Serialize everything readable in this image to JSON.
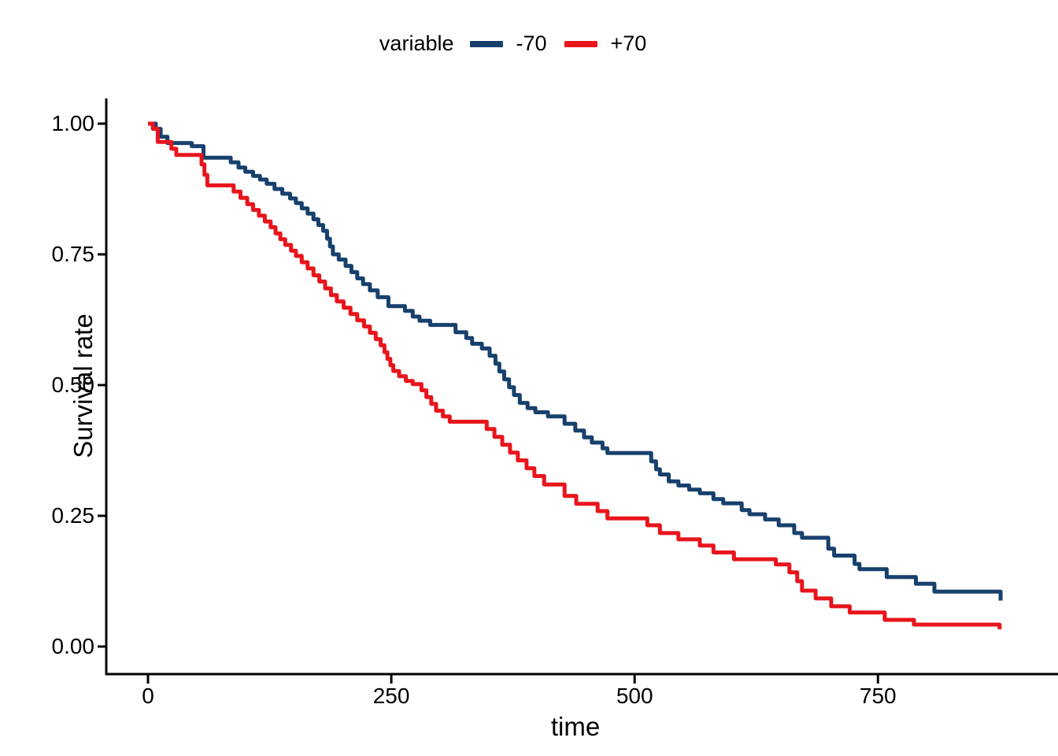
{
  "chart_data": {
    "type": "line",
    "step": true,
    "title": "",
    "xlabel": "time",
    "ylabel": "Survival rate",
    "legend_title": "variable",
    "legend_position": "top",
    "grid": false,
    "xlim": [
      0,
      935
    ],
    "ylim": [
      0,
      1
    ],
    "xticks": [
      {
        "value": 0,
        "label": "0"
      },
      {
        "value": 250,
        "label": "250"
      },
      {
        "value": 500,
        "label": "500"
      },
      {
        "value": 750,
        "label": "750"
      }
    ],
    "yticks": [
      {
        "value": 0.0,
        "label": "0.00"
      },
      {
        "value": 0.25,
        "label": "0.25"
      },
      {
        "value": 0.5,
        "label": "0.50"
      },
      {
        "value": 0.75,
        "label": "0.75"
      },
      {
        "value": 1.0,
        "label": "1.00"
      }
    ],
    "axis_color": "#000000",
    "series": [
      {
        "name": "-70",
        "color": "#17406D",
        "points": [
          [
            0,
            1.0
          ],
          [
            8,
            0.99
          ],
          [
            13,
            0.975
          ],
          [
            20,
            0.963
          ],
          [
            45,
            0.957
          ],
          [
            57,
            0.935
          ],
          [
            85,
            0.926
          ],
          [
            93,
            0.916
          ],
          [
            100,
            0.908
          ],
          [
            108,
            0.9
          ],
          [
            115,
            0.893
          ],
          [
            122,
            0.885
          ],
          [
            130,
            0.875
          ],
          [
            138,
            0.866
          ],
          [
            146,
            0.857
          ],
          [
            152,
            0.848
          ],
          [
            158,
            0.838
          ],
          [
            164,
            0.828
          ],
          [
            170,
            0.817
          ],
          [
            175,
            0.806
          ],
          [
            180,
            0.795
          ],
          [
            184,
            0.78
          ],
          [
            187,
            0.765
          ],
          [
            190,
            0.75
          ],
          [
            196,
            0.74
          ],
          [
            203,
            0.728
          ],
          [
            209,
            0.716
          ],
          [
            215,
            0.704
          ],
          [
            221,
            0.693
          ],
          [
            228,
            0.681
          ],
          [
            236,
            0.668
          ],
          [
            247,
            0.651
          ],
          [
            264,
            0.642
          ],
          [
            272,
            0.631
          ],
          [
            279,
            0.623
          ],
          [
            290,
            0.615
          ],
          [
            316,
            0.601
          ],
          [
            327,
            0.59
          ],
          [
            333,
            0.579
          ],
          [
            343,
            0.57
          ],
          [
            351,
            0.556
          ],
          [
            357,
            0.541
          ],
          [
            361,
            0.526
          ],
          [
            366,
            0.511
          ],
          [
            371,
            0.496
          ],
          [
            376,
            0.481
          ],
          [
            382,
            0.466
          ],
          [
            390,
            0.456
          ],
          [
            398,
            0.448
          ],
          [
            411,
            0.44
          ],
          [
            428,
            0.426
          ],
          [
            439,
            0.413
          ],
          [
            448,
            0.4
          ],
          [
            456,
            0.39
          ],
          [
            467,
            0.379
          ],
          [
            472,
            0.37
          ],
          [
            517,
            0.354
          ],
          [
            522,
            0.339
          ],
          [
            526,
            0.329
          ],
          [
            535,
            0.316
          ],
          [
            545,
            0.308
          ],
          [
            556,
            0.3
          ],
          [
            567,
            0.293
          ],
          [
            581,
            0.282
          ],
          [
            591,
            0.274
          ],
          [
            610,
            0.261
          ],
          [
            618,
            0.253
          ],
          [
            634,
            0.243
          ],
          [
            648,
            0.232
          ],
          [
            664,
            0.217
          ],
          [
            672,
            0.208
          ],
          [
            699,
            0.187
          ],
          [
            705,
            0.174
          ],
          [
            726,
            0.158
          ],
          [
            731,
            0.148
          ],
          [
            759,
            0.133
          ],
          [
            789,
            0.12
          ],
          [
            808,
            0.105
          ],
          [
            876,
            0.088
          ]
        ]
      },
      {
        "name": "+70",
        "color": "#E8151C",
        "points": [
          [
            0,
            1.0
          ],
          [
            5,
            0.99
          ],
          [
            10,
            0.965
          ],
          [
            24,
            0.952
          ],
          [
            29,
            0.94
          ],
          [
            55,
            0.922
          ],
          [
            58,
            0.902
          ],
          [
            61,
            0.882
          ],
          [
            88,
            0.87
          ],
          [
            95,
            0.858
          ],
          [
            102,
            0.846
          ],
          [
            108,
            0.835
          ],
          [
            114,
            0.824
          ],
          [
            120,
            0.813
          ],
          [
            126,
            0.802
          ],
          [
            131,
            0.79
          ],
          [
            136,
            0.779
          ],
          [
            141,
            0.768
          ],
          [
            147,
            0.757
          ],
          [
            152,
            0.747
          ],
          [
            158,
            0.735
          ],
          [
            164,
            0.723
          ],
          [
            170,
            0.71
          ],
          [
            176,
            0.698
          ],
          [
            182,
            0.685
          ],
          [
            188,
            0.672
          ],
          [
            194,
            0.66
          ],
          [
            201,
            0.648
          ],
          [
            208,
            0.636
          ],
          [
            215,
            0.624
          ],
          [
            222,
            0.612
          ],
          [
            228,
            0.6
          ],
          [
            234,
            0.588
          ],
          [
            239,
            0.576
          ],
          [
            243,
            0.563
          ],
          [
            246,
            0.55
          ],
          [
            249,
            0.538
          ],
          [
            252,
            0.527
          ],
          [
            258,
            0.517
          ],
          [
            265,
            0.508
          ],
          [
            272,
            0.502
          ],
          [
            281,
            0.49
          ],
          [
            286,
            0.477
          ],
          [
            291,
            0.464
          ],
          [
            296,
            0.451
          ],
          [
            303,
            0.44
          ],
          [
            310,
            0.43
          ],
          [
            348,
            0.416
          ],
          [
            356,
            0.401
          ],
          [
            364,
            0.386
          ],
          [
            372,
            0.371
          ],
          [
            380,
            0.356
          ],
          [
            389,
            0.341
          ],
          [
            397,
            0.326
          ],
          [
            407,
            0.31
          ],
          [
            428,
            0.288
          ],
          [
            440,
            0.273
          ],
          [
            462,
            0.259
          ],
          [
            472,
            0.245
          ],
          [
            513,
            0.232
          ],
          [
            526,
            0.217
          ],
          [
            545,
            0.205
          ],
          [
            567,
            0.193
          ],
          [
            581,
            0.18
          ],
          [
            602,
            0.167
          ],
          [
            645,
            0.157
          ],
          [
            659,
            0.142
          ],
          [
            667,
            0.125
          ],
          [
            672,
            0.107
          ],
          [
            686,
            0.092
          ],
          [
            702,
            0.077
          ],
          [
            721,
            0.065
          ],
          [
            757,
            0.051
          ],
          [
            787,
            0.042
          ],
          [
            875,
            0.033
          ]
        ]
      }
    ]
  }
}
